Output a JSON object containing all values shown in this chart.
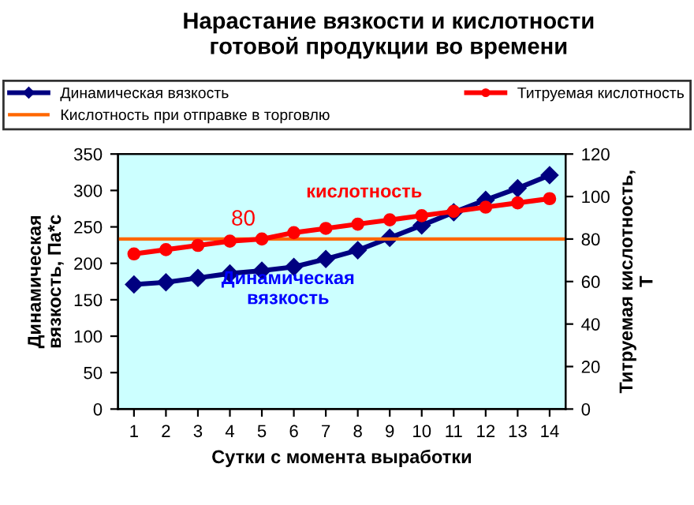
{
  "chart_data": {
    "type": "line",
    "title": "Нарастание вязкости и кислотности\nготовой продукции во времени",
    "xlabel": "Сутки с момента выработки",
    "ylabel": "Динамическая\nвязкость, Па*с",
    "y2label": "Титруемая кислотность,\nТ",
    "categories": [
      "1",
      "2",
      "3",
      "4",
      "5",
      "6",
      "7",
      "8",
      "9",
      "10",
      "11",
      "12",
      "13",
      "14"
    ],
    "series": [
      {
        "name": "Динамическая вязкость",
        "color": "#000080",
        "marker": "diamond",
        "values": [
          171,
          174,
          180,
          186,
          190,
          195,
          206,
          218,
          235,
          252,
          270,
          287,
          303,
          321
        ]
      },
      {
        "name": "Титруемая кислотность",
        "color": "#ff0000",
        "marker": "circle",
        "axis": "y2",
        "values": [
          73,
          75,
          77,
          79,
          80,
          83,
          85,
          87,
          89,
          91,
          93,
          95,
          97,
          99
        ]
      }
    ],
    "ref_lines": [
      {
        "axis": "y2",
        "value": 80,
        "label": "Кислотность при отправке в торговлю",
        "color": "#ff6600"
      }
    ],
    "annotations": [
      "80",
      "кислотность",
      "Динамическая\nвязкость"
    ],
    "ylim": [
      0,
      350
    ],
    "yticks": [
      0,
      50,
      100,
      150,
      200,
      250,
      300,
      350
    ],
    "y2lim": [
      0,
      120
    ],
    "y2ticks": [
      0,
      20,
      40,
      60,
      80,
      100,
      120
    ],
    "grid": false,
    "legend": "top"
  }
}
